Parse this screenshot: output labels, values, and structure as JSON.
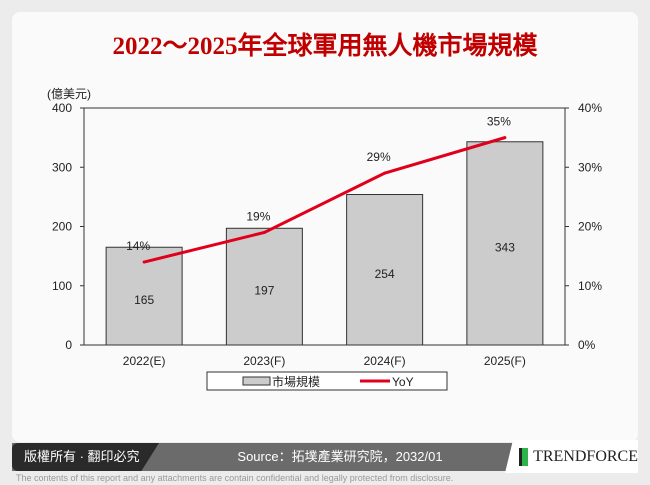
{
  "title": "2022～2025年全球軍用無人機市場規模",
  "chart_data": {
    "type": "bar+line",
    "title": "2022～2025年全球軍用無人機市場規模",
    "ylabel": "(億美元)",
    "categories": [
      "2022(E)",
      "2023(F)",
      "2024(F)",
      "2025(F)"
    ],
    "y_ticks": [
      "0",
      "100",
      "200",
      "300",
      "400"
    ],
    "y2_ticks": [
      "0%",
      "10%",
      "20%",
      "30%",
      "40%"
    ],
    "ylim": [
      0,
      400
    ],
    "y2lim": [
      0,
      40
    ],
    "legend_placement": "bottom",
    "series": [
      {
        "name": "市場規模",
        "type": "bar",
        "values": [
          165,
          197,
          254,
          343
        ],
        "labels": [
          "165",
          "197",
          "254",
          "343"
        ],
        "color": "#cccccc"
      },
      {
        "name": "YoY",
        "type": "line",
        "axis": "right",
        "values": [
          14,
          19,
          29,
          35
        ],
        "labels": [
          "14%",
          "19%",
          "29%",
          "35%"
        ],
        "color": "#e0001b"
      }
    ]
  },
  "footer": {
    "copyright": "版權所有 · 翻印必究",
    "source": "Source：拓墣產業研究院，2032/01",
    "logo": "TRENDFORCE",
    "disclaimer": "The contents of this report and any attachments are contain confidential and legally protected from disclosure."
  }
}
